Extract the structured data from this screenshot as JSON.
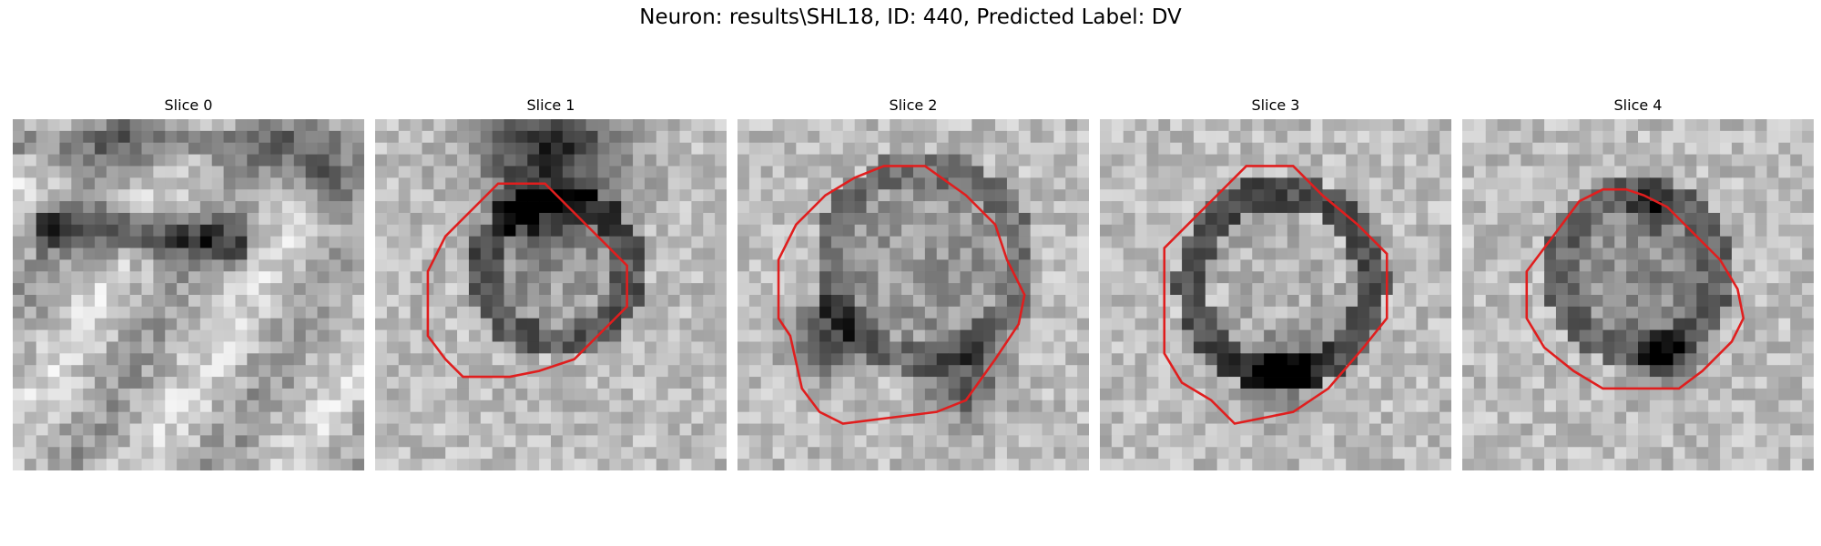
{
  "figure": {
    "title": "Neuron: results\\SHL18, ID: 440, Predicted Label: DV",
    "contour_color": "#e01e1e"
  },
  "slices": [
    {
      "label": "Slice 0",
      "has_contour": false
    },
    {
      "label": "Slice 1",
      "has_contour": true
    },
    {
      "label": "Slice 2",
      "has_contour": true
    },
    {
      "label": "Slice 3",
      "has_contour": true
    },
    {
      "label": "Slice 4",
      "has_contour": true
    }
  ]
}
